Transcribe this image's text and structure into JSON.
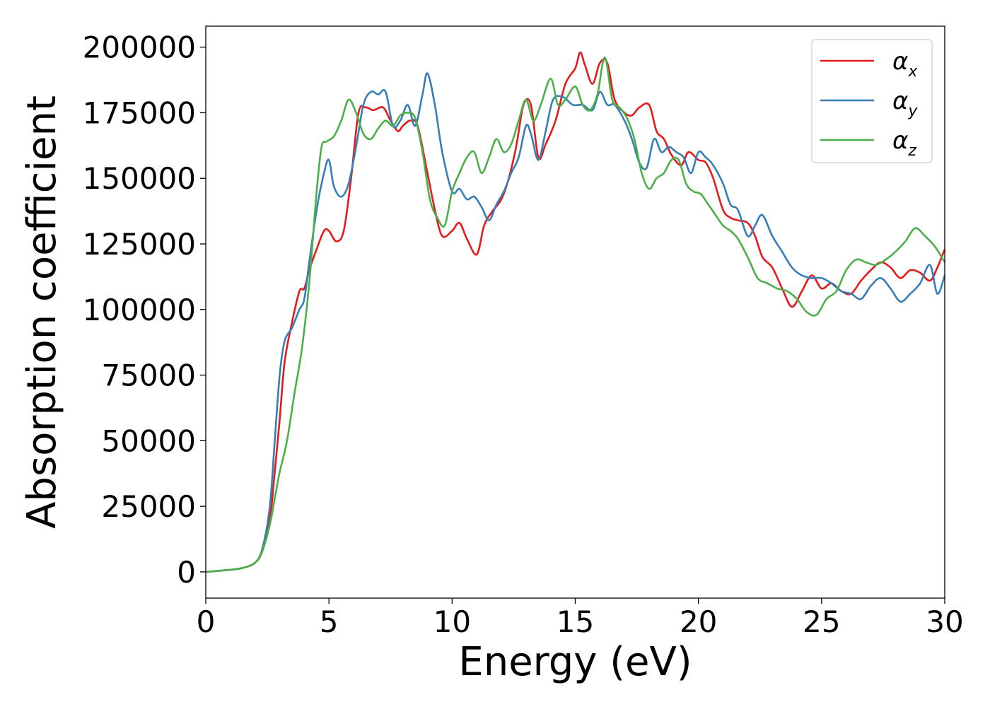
{
  "chart_data": {
    "type": "line",
    "title": "",
    "xlabel": "Energy (eV)",
    "ylabel": "Absorption coefficient",
    "xlim": [
      0,
      30
    ],
    "ylim": [
      -10000,
      208000
    ],
    "xticks": [
      0,
      5,
      10,
      15,
      20,
      25,
      30
    ],
    "yticks": [
      0,
      25000,
      50000,
      75000,
      100000,
      125000,
      150000,
      175000,
      200000
    ],
    "xtick_labels": [
      "0",
      "5",
      "10",
      "15",
      "20",
      "25",
      "30"
    ],
    "ytick_labels": [
      "0",
      "25000",
      "50000",
      "75000",
      "100000",
      "125000",
      "150000",
      "175000",
      "200000"
    ],
    "grid": false,
    "legend_position": "top-right",
    "series": [
      {
        "name": "α_x",
        "label_main": "α",
        "label_sub": "x",
        "color": "#e41a1c",
        "x": [
          0,
          1,
          1.5,
          2,
          2.3,
          2.6,
          2.8,
          3.0,
          3.2,
          3.5,
          3.8,
          4.0,
          4.2,
          4.5,
          4.8,
          5.0,
          5.3,
          5.6,
          5.9,
          6.2,
          6.5,
          6.8,
          7.2,
          7.5,
          7.8,
          8.0,
          8.3,
          8.6,
          9.0,
          9.3,
          9.6,
          10.0,
          10.3,
          10.6,
          11.0,
          11.3,
          11.6,
          12.0,
          12.3,
          12.6,
          12.9,
          13.2,
          13.5,
          13.8,
          14.2,
          14.6,
          15.0,
          15.2,
          15.4,
          15.7,
          16.0,
          16.3,
          16.6,
          17.0,
          17.3,
          17.6,
          18.0,
          18.3,
          18.6,
          18.9,
          19.3,
          19.6,
          20.0,
          20.3,
          20.6,
          21.0,
          21.3,
          21.6,
          22.0,
          22.3,
          22.6,
          23.0,
          23.4,
          23.8,
          24.2,
          24.6,
          25.0,
          25.4,
          25.8,
          26.2,
          26.6,
          27.0,
          27.4,
          27.8,
          28.2,
          28.6,
          29.0,
          29.4,
          29.7,
          30.0
        ],
        "values": [
          0,
          800,
          1500,
          3500,
          8000,
          20000,
          38000,
          58000,
          80000,
          95000,
          107000,
          108000,
          115000,
          123000,
          130000,
          130000,
          126000,
          130000,
          150000,
          175000,
          177000,
          176000,
          177000,
          172000,
          168000,
          170000,
          172000,
          170000,
          152000,
          138000,
          128000,
          130000,
          133000,
          127000,
          121000,
          132000,
          137000,
          142000,
          150000,
          162000,
          178000,
          178000,
          158000,
          163000,
          172000,
          186000,
          192000,
          198000,
          193000,
          186000,
          194000,
          194000,
          180000,
          175000,
          174000,
          177000,
          178000,
          168000,
          165000,
          159000,
          155000,
          160000,
          157000,
          156000,
          150000,
          138000,
          135000,
          134000,
          133000,
          128000,
          120000,
          116000,
          108000,
          101000,
          107000,
          113000,
          108000,
          110000,
          107000,
          106000,
          111000,
          115000,
          118000,
          116000,
          112000,
          115000,
          114000,
          111000,
          116000,
          123000
        ]
      },
      {
        "name": "α_y",
        "label_main": "α",
        "label_sub": "y",
        "color": "#377eb8",
        "x": [
          0,
          1,
          1.5,
          2,
          2.3,
          2.6,
          2.8,
          3.0,
          3.2,
          3.5,
          3.8,
          4.0,
          4.2,
          4.5,
          4.8,
          5.0,
          5.2,
          5.5,
          5.8,
          6.1,
          6.4,
          6.7,
          7.0,
          7.3,
          7.6,
          7.9,
          8.2,
          8.5,
          8.8,
          9.0,
          9.3,
          9.6,
          10.0,
          10.3,
          10.6,
          10.9,
          11.2,
          11.5,
          11.8,
          12.1,
          12.4,
          12.7,
          13.0,
          13.2,
          13.5,
          13.8,
          14.1,
          14.5,
          14.9,
          15.3,
          15.7,
          16.0,
          16.3,
          16.6,
          17.0,
          17.3,
          17.6,
          17.9,
          18.2,
          18.5,
          18.8,
          19.1,
          19.4,
          19.7,
          20.0,
          20.3,
          20.6,
          21.0,
          21.3,
          21.6,
          22.0,
          22.3,
          22.6,
          23.0,
          23.4,
          23.8,
          24.2,
          24.6,
          25.0,
          25.4,
          25.8,
          26.2,
          26.6,
          27.0,
          27.4,
          27.8,
          28.2,
          28.6,
          29.0,
          29.4,
          29.7,
          30.0
        ],
        "values": [
          0,
          800,
          1500,
          3500,
          9000,
          25000,
          50000,
          75000,
          88000,
          93000,
          100000,
          104000,
          118000,
          138000,
          152000,
          157000,
          147000,
          143000,
          148000,
          162000,
          178000,
          183000,
          182000,
          183000,
          170000,
          172000,
          178000,
          170000,
          182000,
          190000,
          178000,
          160000,
          145000,
          146000,
          142000,
          143000,
          139000,
          134000,
          140000,
          145000,
          152000,
          158000,
          170000,
          167000,
          157000,
          168000,
          180000,
          181000,
          178000,
          178000,
          176000,
          183000,
          178000,
          178000,
          172000,
          165000,
          156000,
          154000,
          165000,
          160000,
          162000,
          160000,
          158000,
          152000,
          160000,
          158000,
          155000,
          148000,
          140000,
          138000,
          128000,
          132000,
          136000,
          128000,
          122000,
          116000,
          113000,
          112000,
          112000,
          110000,
          107000,
          106000,
          104000,
          109000,
          112000,
          108000,
          103000,
          106000,
          110000,
          117000,
          106000,
          113000
        ]
      },
      {
        "name": "α_z",
        "label_main": "α",
        "label_sub": "z",
        "color": "#4daf4a",
        "x": [
          0,
          1,
          1.5,
          2,
          2.3,
          2.6,
          2.8,
          3.0,
          3.3,
          3.6,
          3.9,
          4.2,
          4.5,
          4.7,
          4.9,
          5.2,
          5.5,
          5.8,
          6.1,
          6.4,
          6.7,
          7.0,
          7.3,
          7.6,
          7.9,
          8.2,
          8.5,
          8.8,
          9.1,
          9.4,
          9.7,
          10.0,
          10.3,
          10.6,
          10.9,
          11.2,
          11.5,
          11.8,
          12.1,
          12.4,
          12.7,
          13.0,
          13.3,
          13.6,
          14.0,
          14.3,
          14.6,
          15.0,
          15.3,
          15.6,
          15.9,
          16.2,
          16.5,
          16.8,
          17.1,
          17.4,
          17.7,
          18.0,
          18.3,
          18.6,
          18.9,
          19.2,
          19.5,
          19.8,
          20.1,
          20.4,
          20.7,
          21.0,
          21.3,
          21.6,
          22.0,
          22.4,
          22.8,
          23.2,
          23.6,
          24.0,
          24.4,
          24.8,
          25.2,
          25.6,
          26.0,
          26.4,
          26.8,
          27.2,
          27.6,
          28.0,
          28.4,
          28.8,
          29.2,
          29.6,
          30.0
        ],
        "values": [
          0,
          800,
          1500,
          3500,
          8000,
          18000,
          28000,
          38000,
          50000,
          68000,
          85000,
          110000,
          145000,
          162000,
          164000,
          166000,
          172000,
          180000,
          175000,
          167000,
          165000,
          169000,
          172000,
          170000,
          174000,
          175000,
          173000,
          160000,
          142000,
          135000,
          132000,
          145000,
          152000,
          158000,
          160000,
          152000,
          158000,
          165000,
          160000,
          163000,
          172000,
          180000,
          172000,
          178000,
          188000,
          178000,
          180000,
          185000,
          178000,
          176000,
          182000,
          196000,
          180000,
          177000,
          173000,
          165000,
          152000,
          146000,
          150000,
          152000,
          157000,
          157000,
          148000,
          145000,
          144000,
          140000,
          136000,
          132000,
          130000,
          127000,
          120000,
          112000,
          110000,
          108000,
          107000,
          104000,
          99000,
          98000,
          104000,
          107000,
          115000,
          119000,
          118000,
          117000,
          119000,
          122000,
          126000,
          131000,
          128000,
          124000,
          118000
        ]
      }
    ]
  }
}
